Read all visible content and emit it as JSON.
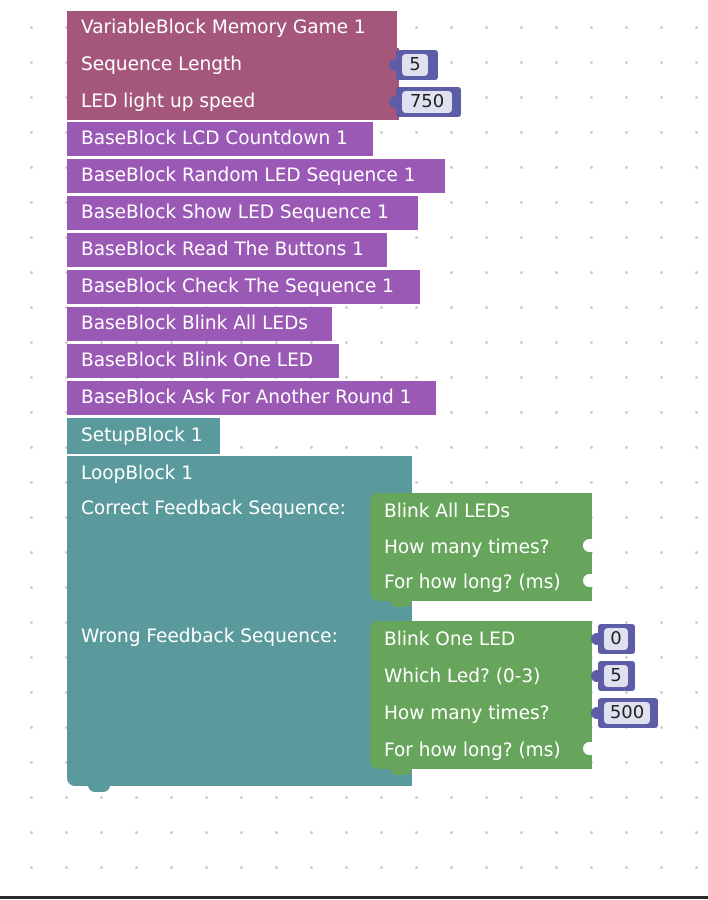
{
  "variable_block": {
    "title": "VariableBlock Memory Game 1",
    "rows": [
      {
        "label": "Sequence Length",
        "value": "5"
      },
      {
        "label": "LED light up speed",
        "value": "750"
      }
    ]
  },
  "base_blocks": [
    "BaseBlock LCD Countdown 1",
    "BaseBlock Random LED Sequence 1",
    "BaseBlock Show LED Sequence 1",
    "BaseBlock Read The Buttons 1",
    "BaseBlock Check The Sequence 1",
    "BaseBlock Blink All LEDs",
    "BaseBlock Blink One LED",
    "BaseBlock Ask For Another Round 1"
  ],
  "setup_block": {
    "title": "SetupBlock 1"
  },
  "loop_block": {
    "title": "LoopBlock 1",
    "correct_label": "Correct Feedback Sequence:",
    "wrong_label": "Wrong Feedback Sequence:",
    "blink_all": {
      "title": "Blink All LEDs",
      "times_label": "How many times?",
      "duration_label": "For how long? (ms)"
    },
    "blink_one": {
      "title": "Blink One LED",
      "title_value": "0",
      "which_label": "Which Led? (0-3)",
      "which_value": "5",
      "times_label": "How many times?",
      "times_value": "500",
      "duration_label": "For how long? (ms)"
    }
  },
  "colors": {
    "variable_block": "#a5577b",
    "base_block": "#9b59b6",
    "setup_loop_block": "#5b9a9c",
    "action_block": "#66a55b",
    "number_block": "#5c5da6"
  }
}
